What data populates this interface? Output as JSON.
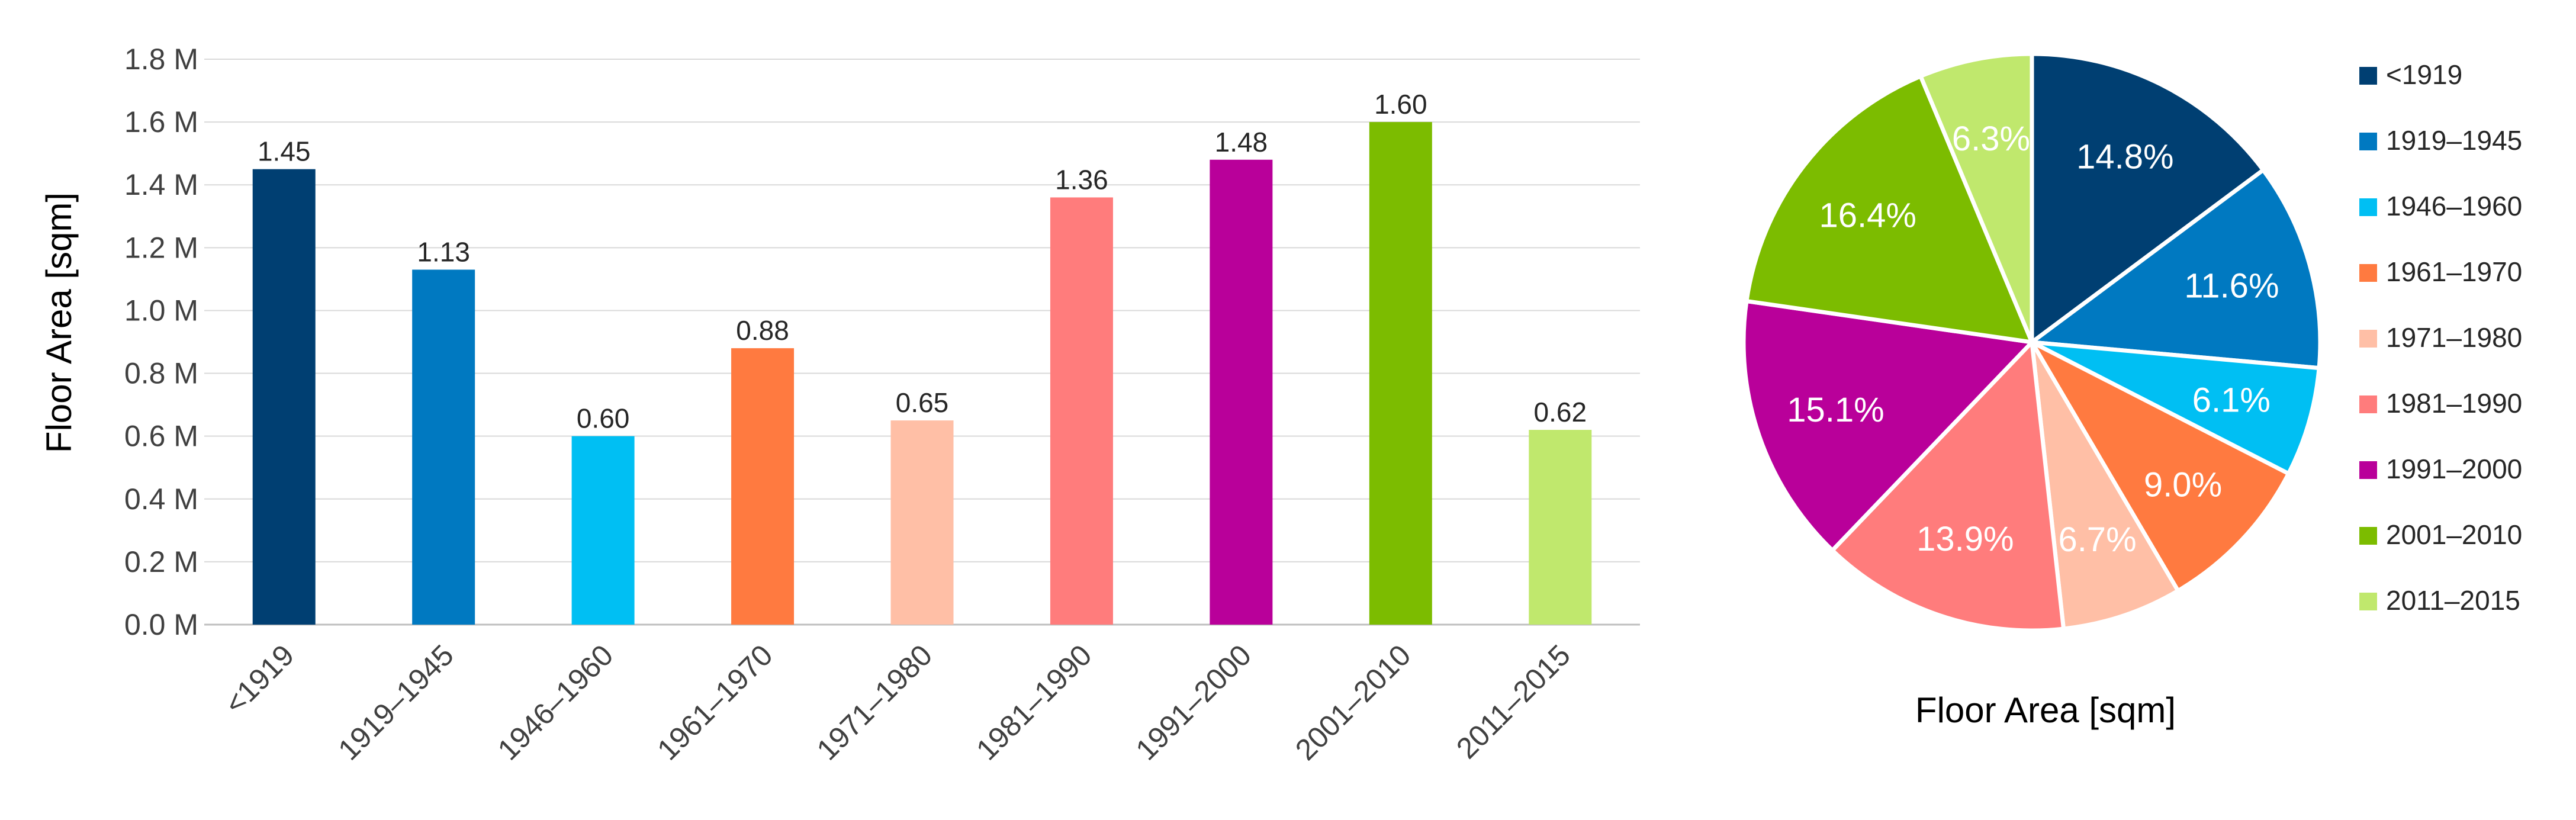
{
  "chart_data": [
    {
      "type": "bar",
      "ylabel": "Floor Area [sqm]",
      "categories": [
        "<1919",
        "1919–1945",
        "1946–1960",
        "1961–1970",
        "1971–1980",
        "1981–1990",
        "1991–2000",
        "2001–2010",
        "2011–2015"
      ],
      "values": [
        1.45,
        1.13,
        0.6,
        0.88,
        0.65,
        1.36,
        1.48,
        1.6,
        0.62
      ],
      "value_labels": [
        "1.45",
        "1.13",
        "0.60",
        "0.88",
        "0.65",
        "1.36",
        "1.48",
        "1.60",
        "0.62"
      ],
      "colors": [
        "#003F72",
        "#0079C1",
        "#00BFF3",
        "#FF7A40",
        "#FFBFA6",
        "#FF7C7C",
        "#B9009A",
        "#7CBC00",
        "#C0E86D"
      ],
      "ylim": [
        0,
        1.8
      ],
      "yticks": [
        0.0,
        0.2,
        0.4,
        0.6,
        0.8,
        1.0,
        1.2,
        1.4,
        1.6,
        1.8
      ],
      "ytick_labels": [
        "0.0 M",
        "0.2 M",
        "0.4 M",
        "0.6 M",
        "0.8 M",
        "1.0 M",
        "1.2 M",
        "1.4 M",
        "1.6 M",
        "1.8 M"
      ],
      "grid": true,
      "legend": "none"
    },
    {
      "type": "pie",
      "xlabel": "Floor Area [sqm]",
      "categories": [
        "<1919",
        "1919–1945",
        "1946–1960",
        "1961–1970",
        "1971–1980",
        "1981–1990",
        "1991–2000",
        "2001–2010",
        "2011–2015"
      ],
      "values": [
        14.8,
        11.6,
        6.1,
        9.0,
        6.7,
        13.9,
        15.1,
        16.4,
        6.3
      ],
      "value_labels": [
        "14.8%",
        "11.6%",
        "6.1%",
        "9.0%",
        "6.7%",
        "13.9%",
        "15.1%",
        "16.4%",
        "6.3%"
      ],
      "colors": [
        "#003F72",
        "#0079C1",
        "#00BFF3",
        "#FF7A40",
        "#FFBFA6",
        "#FF7C7C",
        "#B9009A",
        "#7CBC00",
        "#C0E86D"
      ],
      "legend": "right"
    }
  ]
}
